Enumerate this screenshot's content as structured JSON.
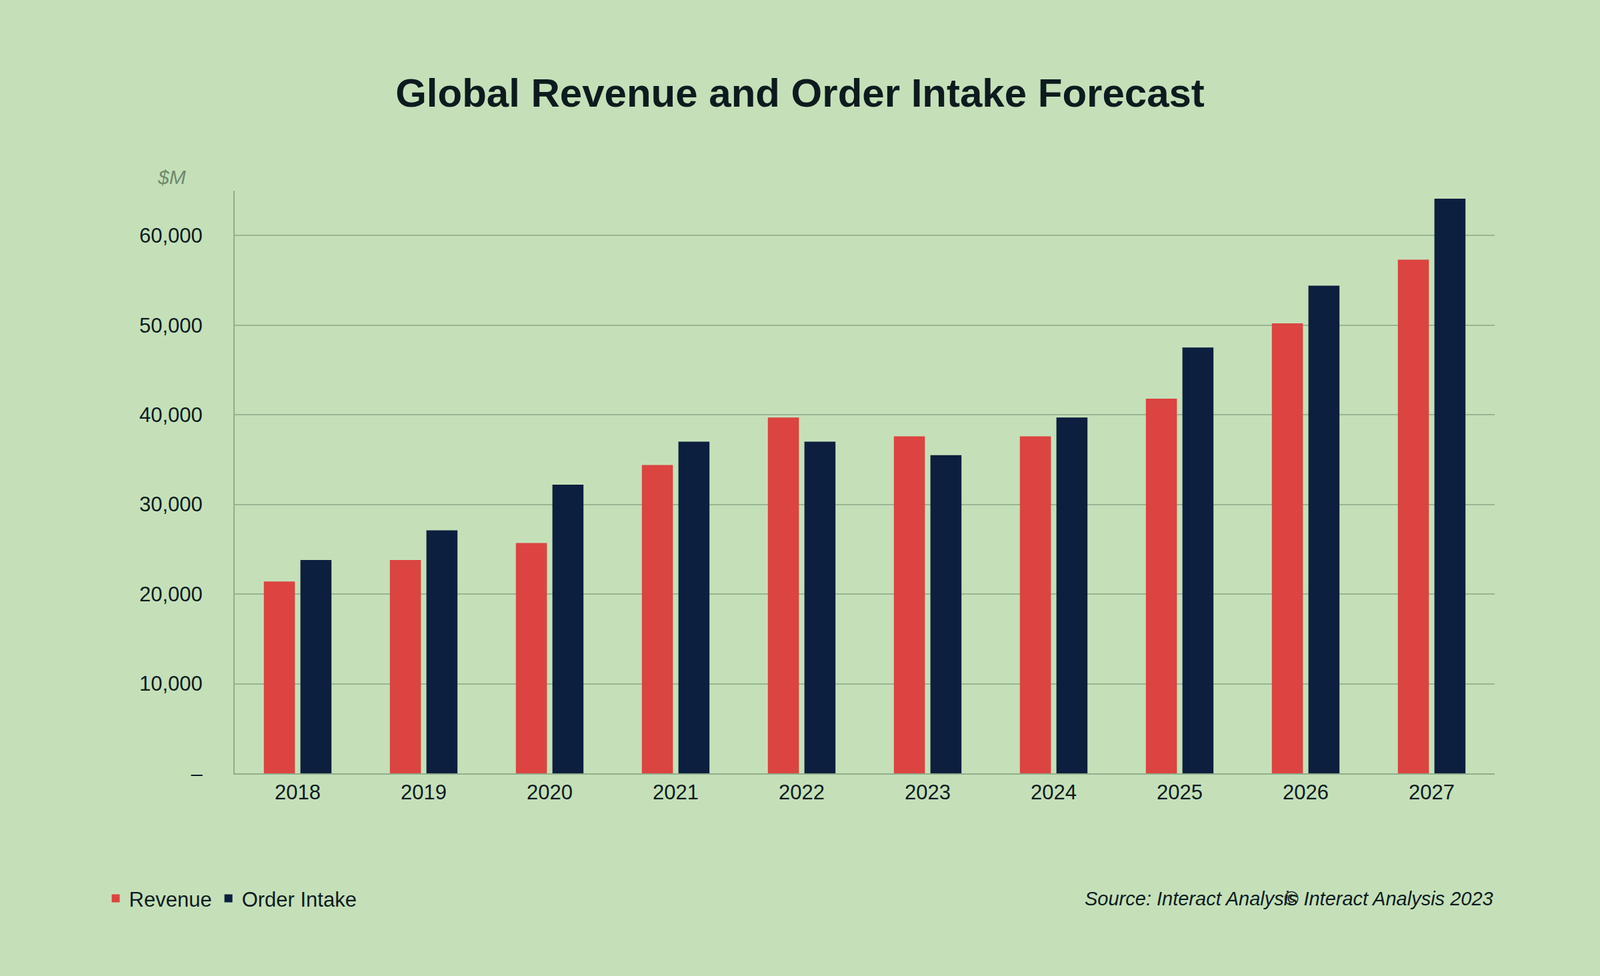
{
  "chart_data": {
    "type": "bar",
    "title": "Global Revenue and Order Intake Forecast",
    "ylabel": "$M",
    "categories": [
      "2018",
      "2019",
      "2020",
      "2021",
      "2022",
      "2023",
      "2024",
      "2025",
      "2026",
      "2027"
    ],
    "series": [
      {
        "name": "Revenue",
        "color": "#db4441",
        "values": [
          21400,
          23800,
          25700,
          34400,
          39700,
          37600,
          37600,
          41800,
          50200,
          57300
        ]
      },
      {
        "name": "Order Intake",
        "color": "#0c1f3e",
        "values": [
          23800,
          27100,
          32200,
          37000,
          37000,
          35500,
          39700,
          47500,
          54400,
          64100
        ]
      }
    ],
    "ylim": [
      0,
      65000
    ],
    "yticks": [
      {
        "value": 0,
        "label": "–"
      },
      {
        "value": 10000,
        "label": "10,000"
      },
      {
        "value": 20000,
        "label": "20,000"
      },
      {
        "value": 30000,
        "label": "30,000"
      },
      {
        "value": 40000,
        "label": "40,000"
      },
      {
        "value": 50000,
        "label": "50,000"
      },
      {
        "value": 60000,
        "label": "60,000"
      }
    ],
    "grid": true,
    "legend": "bottom left",
    "source": "Source: Interact Analysis",
    "copyright": "© Interact Analysis 2023"
  }
}
